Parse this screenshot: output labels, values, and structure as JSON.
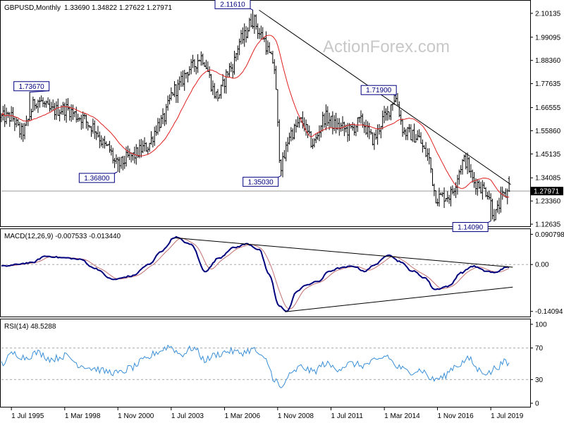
{
  "chart_data": [
    {
      "type": "candlestick",
      "panel": "price",
      "title": "GBPUSD,Monthly",
      "ohlc_text": "1.33690 1.34822 1.27622 1.27971",
      "watermark": "ActionForex.com",
      "yticks": [
        "2.10135",
        "1.99095",
        "1.88360",
        "1.77635",
        "1.66555",
        "1.55860",
        "1.45135",
        "1.34085",
        "1.23360",
        "1.12635"
      ],
      "ytick_values": [
        2.10135,
        1.99095,
        1.8836,
        1.77635,
        1.66555,
        1.5586,
        1.45135,
        1.34085,
        1.2336,
        1.12635
      ],
      "ylim": [
        1.12635,
        2.15
      ],
      "current_price": 1.27971,
      "current_price_label": "1.27971",
      "annotations": [
        {
          "label": "2.11610",
          "x": 2007.6,
          "y": 2.1161
        },
        {
          "label": "1.73670",
          "x": 1996.4,
          "y": 1.7367
        },
        {
          "label": "1.36800",
          "x": 2000.8,
          "y": 1.368
        },
        {
          "label": "1.35030",
          "x": 2009.0,
          "y": 1.3503
        },
        {
          "label": "1.71900",
          "x": 2014.7,
          "y": 1.719
        },
        {
          "label": "1.14090",
          "x": 2019.5,
          "y": 1.1409
        }
      ],
      "trendline": {
        "from": [
          2007.9,
          2.1161
        ],
        "to": [
          2020.5,
          1.31
        ]
      },
      "ma_color": "#e02020",
      "price_color": "#000000",
      "keypoints": [
        [
          1995.5,
          1.62
        ],
        [
          1996.0,
          1.55
        ],
        [
          1996.8,
          1.7
        ],
        [
          1997.5,
          1.65
        ],
        [
          1998.2,
          1.66
        ],
        [
          1999.0,
          1.62
        ],
        [
          1999.5,
          1.58
        ],
        [
          2000.3,
          1.48
        ],
        [
          2000.8,
          1.4
        ],
        [
          2001.5,
          1.44
        ],
        [
          2002.2,
          1.48
        ],
        [
          2003.0,
          1.6
        ],
        [
          2003.7,
          1.75
        ],
        [
          2004.5,
          1.85
        ],
        [
          2005.0,
          1.9
        ],
        [
          2005.8,
          1.72
        ],
        [
          2006.5,
          1.85
        ],
        [
          2007.0,
          1.98
        ],
        [
          2007.6,
          2.07
        ],
        [
          2008.0,
          2.0
        ],
        [
          2008.6,
          1.88
        ],
        [
          2009.0,
          1.4
        ],
        [
          2009.5,
          1.55
        ],
        [
          2010.0,
          1.6
        ],
        [
          2010.6,
          1.5
        ],
        [
          2011.2,
          1.62
        ],
        [
          2011.8,
          1.58
        ],
        [
          2012.4,
          1.56
        ],
        [
          2013.0,
          1.6
        ],
        [
          2013.6,
          1.52
        ],
        [
          2014.2,
          1.62
        ],
        [
          2014.7,
          1.71
        ],
        [
          2015.2,
          1.55
        ],
        [
          2015.8,
          1.53
        ],
        [
          2016.3,
          1.45
        ],
        [
          2016.8,
          1.25
        ],
        [
          2017.4,
          1.26
        ],
        [
          2018.2,
          1.42
        ],
        [
          2018.7,
          1.32
        ],
        [
          2019.3,
          1.28
        ],
        [
          2019.7,
          1.17
        ],
        [
          2020.1,
          1.25
        ],
        [
          2020.4,
          1.28
        ]
      ]
    },
    {
      "type": "line",
      "panel": "macd",
      "title": "MACD(12,26,9) -0.007533 -0.013440",
      "yticks": [
        "0.090798",
        "0.00",
        "-0.14094"
      ],
      "ytick_values": [
        0.090798,
        0.0,
        -0.14094
      ],
      "current_label": "0.00",
      "ylim": [
        -0.15,
        0.1
      ],
      "trendlines": [
        {
          "from": [
            2003.7,
            0.08
          ],
          "to": [
            2020.6,
            -0.008
          ]
        },
        {
          "from": [
            2009.2,
            -0.142
          ],
          "to": [
            2020.6,
            -0.068
          ]
        }
      ],
      "macd_color": "#00007f",
      "signal_color": "#c07070",
      "keypoints": [
        [
          1995.0,
          -0.005
        ],
        [
          1996.5,
          0.005
        ],
        [
          1997.2,
          0.025
        ],
        [
          1998.2,
          0.02
        ],
        [
          1999.0,
          0.015
        ],
        [
          1999.6,
          -0.01
        ],
        [
          2000.6,
          -0.045
        ],
        [
          2001.5,
          -0.035
        ],
        [
          2002.4,
          0.0
        ],
        [
          2003.0,
          0.04
        ],
        [
          2003.7,
          0.082
        ],
        [
          2004.5,
          0.06
        ],
        [
          2005.2,
          -0.02
        ],
        [
          2005.9,
          0.02
        ],
        [
          2006.6,
          0.05
        ],
        [
          2007.3,
          0.062
        ],
        [
          2007.9,
          0.045
        ],
        [
          2008.4,
          -0.03
        ],
        [
          2008.9,
          -0.125
        ],
        [
          2009.3,
          -0.14
        ],
        [
          2009.8,
          -0.08
        ],
        [
          2010.3,
          -0.06
        ],
        [
          2010.9,
          -0.05
        ],
        [
          2011.4,
          -0.02
        ],
        [
          2012.0,
          -0.01
        ],
        [
          2012.6,
          -0.005
        ],
        [
          2013.2,
          -0.02
        ],
        [
          2013.7,
          0.0
        ],
        [
          2014.4,
          0.03
        ],
        [
          2014.9,
          0.01
        ],
        [
          2015.6,
          -0.02
        ],
        [
          2016.2,
          -0.04
        ],
        [
          2016.7,
          -0.075
        ],
        [
          2017.4,
          -0.065
        ],
        [
          2018.0,
          -0.025
        ],
        [
          2018.6,
          -0.005
        ],
        [
          2019.3,
          -0.02
        ],
        [
          2019.7,
          -0.025
        ],
        [
          2020.2,
          -0.01
        ],
        [
          2020.4,
          -0.0075
        ]
      ]
    },
    {
      "type": "line",
      "panel": "rsi",
      "title": "RSI(14) 48.5288",
      "yticks": [
        "100",
        "70",
        "30",
        "0"
      ],
      "ytick_values": [
        100,
        70,
        30,
        0
      ],
      "ylim": [
        0,
        100
      ],
      "levels": [
        70,
        30
      ],
      "line_color": "#3a8fd8",
      "keypoints": [
        [
          1995.0,
          50
        ],
        [
          1995.6,
          63
        ],
        [
          1996.2,
          58
        ],
        [
          1996.8,
          64
        ],
        [
          1997.5,
          56
        ],
        [
          1998.2,
          60
        ],
        [
          1999.0,
          48
        ],
        [
          1999.6,
          44
        ],
        [
          2000.3,
          40
        ],
        [
          2000.9,
          38
        ],
        [
          2001.5,
          45
        ],
        [
          2002.2,
          55
        ],
        [
          2002.8,
          65
        ],
        [
          2003.4,
          72
        ],
        [
          2004.0,
          62
        ],
        [
          2004.6,
          70
        ],
        [
          2005.2,
          55
        ],
        [
          2005.8,
          62
        ],
        [
          2006.4,
          66
        ],
        [
          2007.0,
          64
        ],
        [
          2007.6,
          68
        ],
        [
          2008.2,
          55
        ],
        [
          2008.7,
          30
        ],
        [
          2009.0,
          18
        ],
        [
          2009.4,
          35
        ],
        [
          2010.0,
          46
        ],
        [
          2010.6,
          40
        ],
        [
          2011.2,
          50
        ],
        [
          2011.8,
          44
        ],
        [
          2012.5,
          50
        ],
        [
          2013.1,
          48
        ],
        [
          2013.7,
          53
        ],
        [
          2014.3,
          60
        ],
        [
          2014.8,
          46
        ],
        [
          2015.4,
          40
        ],
        [
          2016.0,
          42
        ],
        [
          2016.6,
          30
        ],
        [
          2017.0,
          32
        ],
        [
          2017.8,
          48
        ],
        [
          2018.4,
          56
        ],
        [
          2018.9,
          42
        ],
        [
          2019.4,
          38
        ],
        [
          2019.8,
          46
        ],
        [
          2020.2,
          52
        ],
        [
          2020.4,
          48.5
        ]
      ]
    }
  ],
  "x_axis": {
    "ticks": [
      "1 Jul 1995",
      "1 Mar 1998",
      "1 Nov 2000",
      "1 Jul 2003",
      "1 Mar 2006",
      "1 Nov 2008",
      "1 Jul 2011",
      "1 Mar 2014",
      "1 Nov 2016",
      "1 Jul 2019"
    ],
    "tick_values": [
      1995.5,
      1998.17,
      2000.83,
      2003.5,
      2006.17,
      2008.83,
      2011.5,
      2014.17,
      2016.83,
      2019.5
    ],
    "xlim": [
      1995.0,
      2021.4
    ]
  }
}
